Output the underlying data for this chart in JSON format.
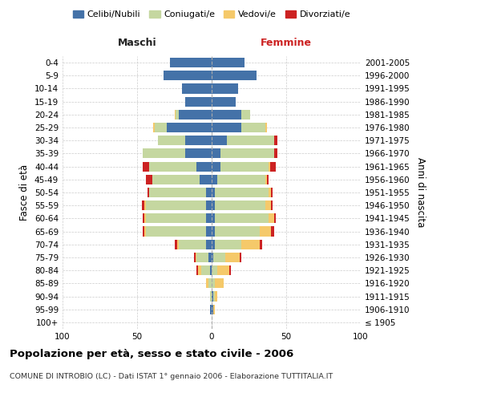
{
  "age_groups": [
    "100+",
    "95-99",
    "90-94",
    "85-89",
    "80-84",
    "75-79",
    "70-74",
    "65-69",
    "60-64",
    "55-59",
    "50-54",
    "45-49",
    "40-44",
    "35-39",
    "30-34",
    "25-29",
    "20-24",
    "15-19",
    "10-14",
    "5-9",
    "0-4"
  ],
  "birth_years": [
    "≤ 1905",
    "1906-1910",
    "1911-1915",
    "1916-1920",
    "1921-1925",
    "1926-1930",
    "1931-1935",
    "1936-1940",
    "1941-1945",
    "1946-1950",
    "1951-1955",
    "1956-1960",
    "1961-1965",
    "1966-1970",
    "1971-1975",
    "1976-1980",
    "1981-1985",
    "1986-1990",
    "1991-1995",
    "1996-2000",
    "2001-2005"
  ],
  "colors": {
    "celibi": "#4472a8",
    "coniugati": "#c5d7a0",
    "vedovi": "#f5c96a",
    "divorziati": "#cc2222"
  },
  "males": {
    "celibi": [
      0,
      1,
      0,
      0,
      1,
      2,
      4,
      4,
      4,
      4,
      4,
      8,
      10,
      18,
      18,
      30,
      22,
      18,
      20,
      32,
      28
    ],
    "coniugati": [
      0,
      0,
      1,
      2,
      6,
      8,
      18,
      40,
      40,
      40,
      38,
      32,
      32,
      28,
      18,
      8,
      2,
      0,
      0,
      0,
      0
    ],
    "vedovi": [
      0,
      0,
      0,
      2,
      2,
      1,
      1,
      1,
      1,
      1,
      0,
      0,
      0,
      0,
      0,
      1,
      1,
      0,
      0,
      0,
      0
    ],
    "divorziati": [
      0,
      0,
      0,
      0,
      1,
      1,
      2,
      1,
      1,
      2,
      1,
      4,
      4,
      0,
      0,
      0,
      0,
      0,
      0,
      0,
      0
    ]
  },
  "females": {
    "nubili": [
      0,
      1,
      1,
      0,
      0,
      1,
      2,
      2,
      2,
      2,
      2,
      4,
      6,
      6,
      10,
      20,
      20,
      16,
      18,
      30,
      22
    ],
    "coniugate": [
      0,
      0,
      1,
      2,
      4,
      8,
      18,
      30,
      36,
      34,
      36,
      32,
      32,
      36,
      32,
      16,
      6,
      0,
      0,
      0,
      0
    ],
    "vedove": [
      0,
      1,
      2,
      6,
      8,
      10,
      12,
      8,
      4,
      4,
      2,
      1,
      1,
      0,
      0,
      1,
      0,
      0,
      0,
      0,
      0
    ],
    "divorziate": [
      0,
      0,
      0,
      0,
      1,
      1,
      2,
      2,
      1,
      1,
      1,
      1,
      4,
      2,
      2,
      0,
      0,
      0,
      0,
      0,
      0
    ]
  },
  "title": "Popolazione per età, sesso e stato civile - 2006",
  "subtitle": "COMUNE DI INTROBIO (LC) - Dati ISTAT 1° gennaio 2006 - Elaborazione TUTTITALIA.IT",
  "xlim": 100,
  "legend_labels": [
    "Celibi/Nubili",
    "Coniugati/e",
    "Vedovi/e",
    "Divorziati/e"
  ],
  "xlabel_left": "Maschi",
  "xlabel_right": "Femmine",
  "ylabel_left": "Fasce di età",
  "ylabel_right": "Anni di nascita",
  "background_color": "#ffffff",
  "grid_color": "#cccccc"
}
